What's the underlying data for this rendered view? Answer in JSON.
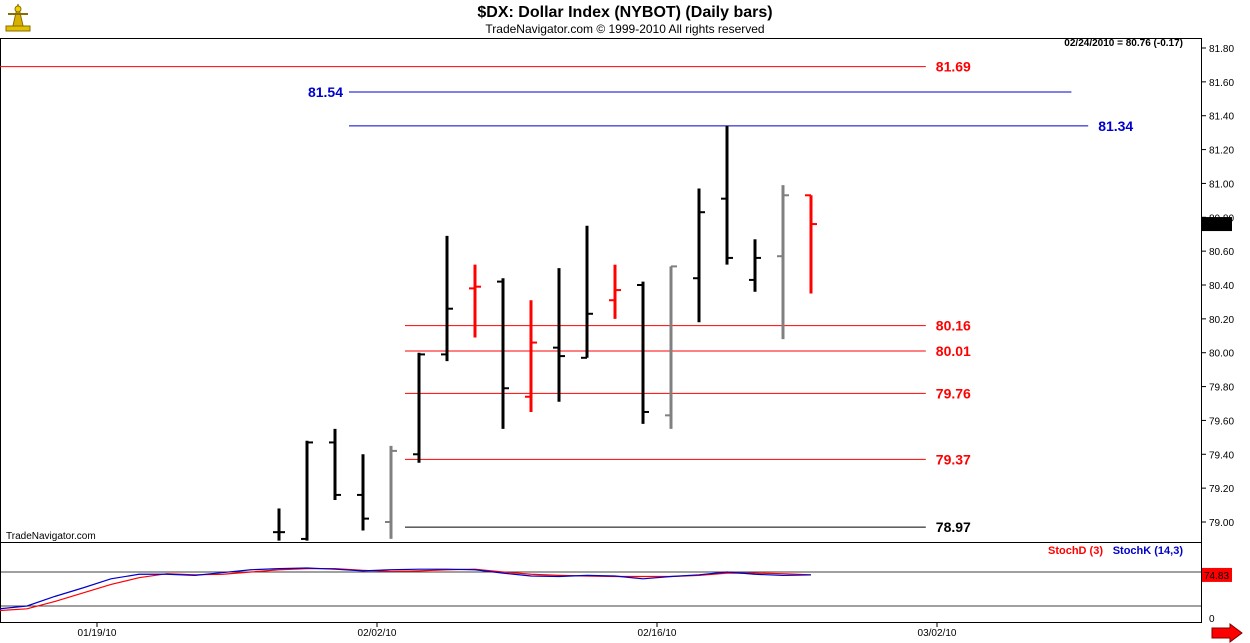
{
  "chart_data": {
    "type": "bar",
    "title": "$DX:  Dollar Index (NYBOT)  (Daily bars)",
    "subtitle": "TradeNavigator.com © 1999-2010 All rights reserved",
    "readout": "02/24/2010 = 80.76 (-0.17)",
    "watermark": "TradeNavigator.com",
    "last_price_label": "80.76",
    "ylim": [
      78.9,
      81.85
    ],
    "y_ticks": [
      "81.80",
      "81.60",
      "81.40",
      "81.20",
      "81.00",
      "80.80",
      "80.60",
      "80.40",
      "80.20",
      "80.00",
      "79.80",
      "79.60",
      "79.40",
      "79.20",
      "79.00"
    ],
    "x_ticks": [
      {
        "label": "01/19/10",
        "bar_index": 2.5
      },
      {
        "label": "02/02/10",
        "bar_index": 12.5
      },
      {
        "label": "02/16/10",
        "bar_index": 22.5
      },
      {
        "label": "03/02/10",
        "bar_index": 32.5
      }
    ],
    "levels": [
      {
        "label": "81.69",
        "value": 81.69,
        "color": "#ff0000",
        "start_bar": -1,
        "end_bar": 32.1
      },
      {
        "label": "81.54",
        "value": 81.54,
        "color": "#0000cc",
        "start_bar": 11.5,
        "end_bar": 37.3
      },
      {
        "label": "81.34",
        "value": 81.34,
        "color": "#0000cc",
        "start_bar": 11.5,
        "end_bar": 37.9
      },
      {
        "label": "80.16",
        "value": 80.16,
        "color": "#ff0000",
        "start_bar": 13.5,
        "end_bar": 32.1
      },
      {
        "label": "80.01",
        "value": 80.01,
        "color": "#ff0000",
        "start_bar": 13.5,
        "end_bar": 32.1
      },
      {
        "label": "79.76",
        "value": 79.76,
        "color": "#ff0000",
        "start_bar": 13.5,
        "end_bar": 32.1
      },
      {
        "label": "79.37",
        "value": 79.37,
        "color": "#ff0000",
        "start_bar": 13.5,
        "end_bar": 32.1
      },
      {
        "label": "78.97",
        "value": 78.97,
        "color": "#000000",
        "start_bar": 13.5,
        "end_bar": 32.1
      }
    ],
    "bars": [
      {
        "i": 9,
        "open": 78.94,
        "high": 79.08,
        "low": 78.89,
        "close": 78.94,
        "color": "#000000"
      },
      {
        "i": 10,
        "open": 78.9,
        "high": 79.48,
        "low": 78.89,
        "close": 79.47,
        "color": "#000000"
      },
      {
        "i": 11,
        "open": 79.47,
        "high": 79.55,
        "low": 79.13,
        "close": 79.16,
        "color": "#000000"
      },
      {
        "i": 12,
        "open": 79.16,
        "high": 79.4,
        "low": 78.95,
        "close": 79.02,
        "color": "#000000"
      },
      {
        "i": 13,
        "open": 79.0,
        "high": 79.45,
        "low": 78.9,
        "close": 79.42,
        "color": "#808080"
      },
      {
        "i": 14,
        "open": 79.4,
        "high": 80.0,
        "low": 79.35,
        "close": 79.99,
        "color": "#000000"
      },
      {
        "i": 15,
        "open": 79.99,
        "high": 80.69,
        "low": 79.95,
        "close": 80.26,
        "color": "#000000"
      },
      {
        "i": 16,
        "open": 80.38,
        "high": 80.52,
        "low": 80.09,
        "close": 80.39,
        "color": "#ff0000"
      },
      {
        "i": 17,
        "open": 80.42,
        "high": 80.44,
        "low": 79.55,
        "close": 79.79,
        "color": "#000000"
      },
      {
        "i": 18,
        "open": 79.74,
        "high": 80.31,
        "low": 79.65,
        "close": 80.06,
        "color": "#ff0000"
      },
      {
        "i": 19,
        "open": 80.03,
        "high": 80.5,
        "low": 79.71,
        "close": 79.98,
        "color": "#000000"
      },
      {
        "i": 20,
        "open": 79.97,
        "high": 80.75,
        "low": 79.97,
        "close": 80.23,
        "color": "#000000"
      },
      {
        "i": 21,
        "open": 80.31,
        "high": 80.52,
        "low": 80.2,
        "close": 80.37,
        "color": "#ff0000"
      },
      {
        "i": 22,
        "open": 80.4,
        "high": 80.42,
        "low": 79.58,
        "close": 79.65,
        "color": "#000000"
      },
      {
        "i": 23,
        "open": 79.63,
        "high": 80.51,
        "low": 79.55,
        "close": 80.51,
        "color": "#808080"
      },
      {
        "i": 24,
        "open": 80.44,
        "high": 80.97,
        "low": 80.18,
        "close": 80.83,
        "color": "#000000"
      },
      {
        "i": 25,
        "open": 80.91,
        "high": 81.34,
        "low": 80.52,
        "close": 80.56,
        "color": "#000000"
      },
      {
        "i": 26,
        "open": 80.43,
        "high": 80.67,
        "low": 80.36,
        "close": 80.56,
        "color": "#000000"
      },
      {
        "i": 27,
        "open": 80.57,
        "high": 80.99,
        "low": 80.08,
        "close": 80.93,
        "color": "#808080"
      },
      {
        "i": 28,
        "open": 80.93,
        "high": 80.93,
        "low": 80.35,
        "close": 80.76,
        "color": "#ff0000"
      }
    ],
    "stochastic": {
      "ylim": [
        0,
        100
      ],
      "y_ticks": [
        "0"
      ],
      "reference_line": 80,
      "lower_line": 20,
      "last_value_label": "74.83",
      "series": [
        {
          "name": "StochD (3)",
          "color": "#ff0000",
          "values": [
            [
              -1,
              12
            ],
            [
              0,
              15
            ],
            [
              1,
              28
            ],
            [
              2,
              43
            ],
            [
              3,
              58
            ],
            [
              4,
              70
            ],
            [
              5,
              77
            ],
            [
              6,
              75
            ],
            [
              7,
              76
            ],
            [
              8,
              80
            ],
            [
              9,
              84
            ],
            [
              10,
              86
            ],
            [
              11,
              86
            ],
            [
              12,
              83
            ],
            [
              13,
              81
            ],
            [
              14,
              82
            ],
            [
              15,
              84
            ],
            [
              16,
              85
            ],
            [
              17,
              80
            ],
            [
              18,
              76
            ],
            [
              19,
              74
            ],
            [
              20,
              73
            ],
            [
              21,
              72
            ],
            [
              22,
              72
            ],
            [
              23,
              72
            ],
            [
              24,
              74
            ],
            [
              25,
              78
            ],
            [
              26,
              78
            ],
            [
              27,
              77
            ],
            [
              28,
              75
            ]
          ]
        },
        {
          "name": "StochK (14,3)",
          "color": "#0000cc",
          "values": [
            [
              -1,
              15
            ],
            [
              0,
              20
            ],
            [
              1,
              37
            ],
            [
              2,
              52
            ],
            [
              3,
              68
            ],
            [
              4,
              76
            ],
            [
              5,
              76
            ],
            [
              6,
              74
            ],
            [
              7,
              79
            ],
            [
              8,
              84
            ],
            [
              9,
              86
            ],
            [
              10,
              87
            ],
            [
              11,
              85
            ],
            [
              12,
              82
            ],
            [
              13,
              84
            ],
            [
              14,
              85
            ],
            [
              15,
              85
            ],
            [
              16,
              84
            ],
            [
              17,
              78
            ],
            [
              18,
              73
            ],
            [
              19,
              72
            ],
            [
              20,
              74
            ],
            [
              21,
              73
            ],
            [
              22,
              68
            ],
            [
              23,
              72
            ],
            [
              24,
              75
            ],
            [
              25,
              80
            ],
            [
              26,
              76
            ],
            [
              27,
              74
            ],
            [
              28,
              74.83
            ]
          ]
        }
      ]
    }
  }
}
